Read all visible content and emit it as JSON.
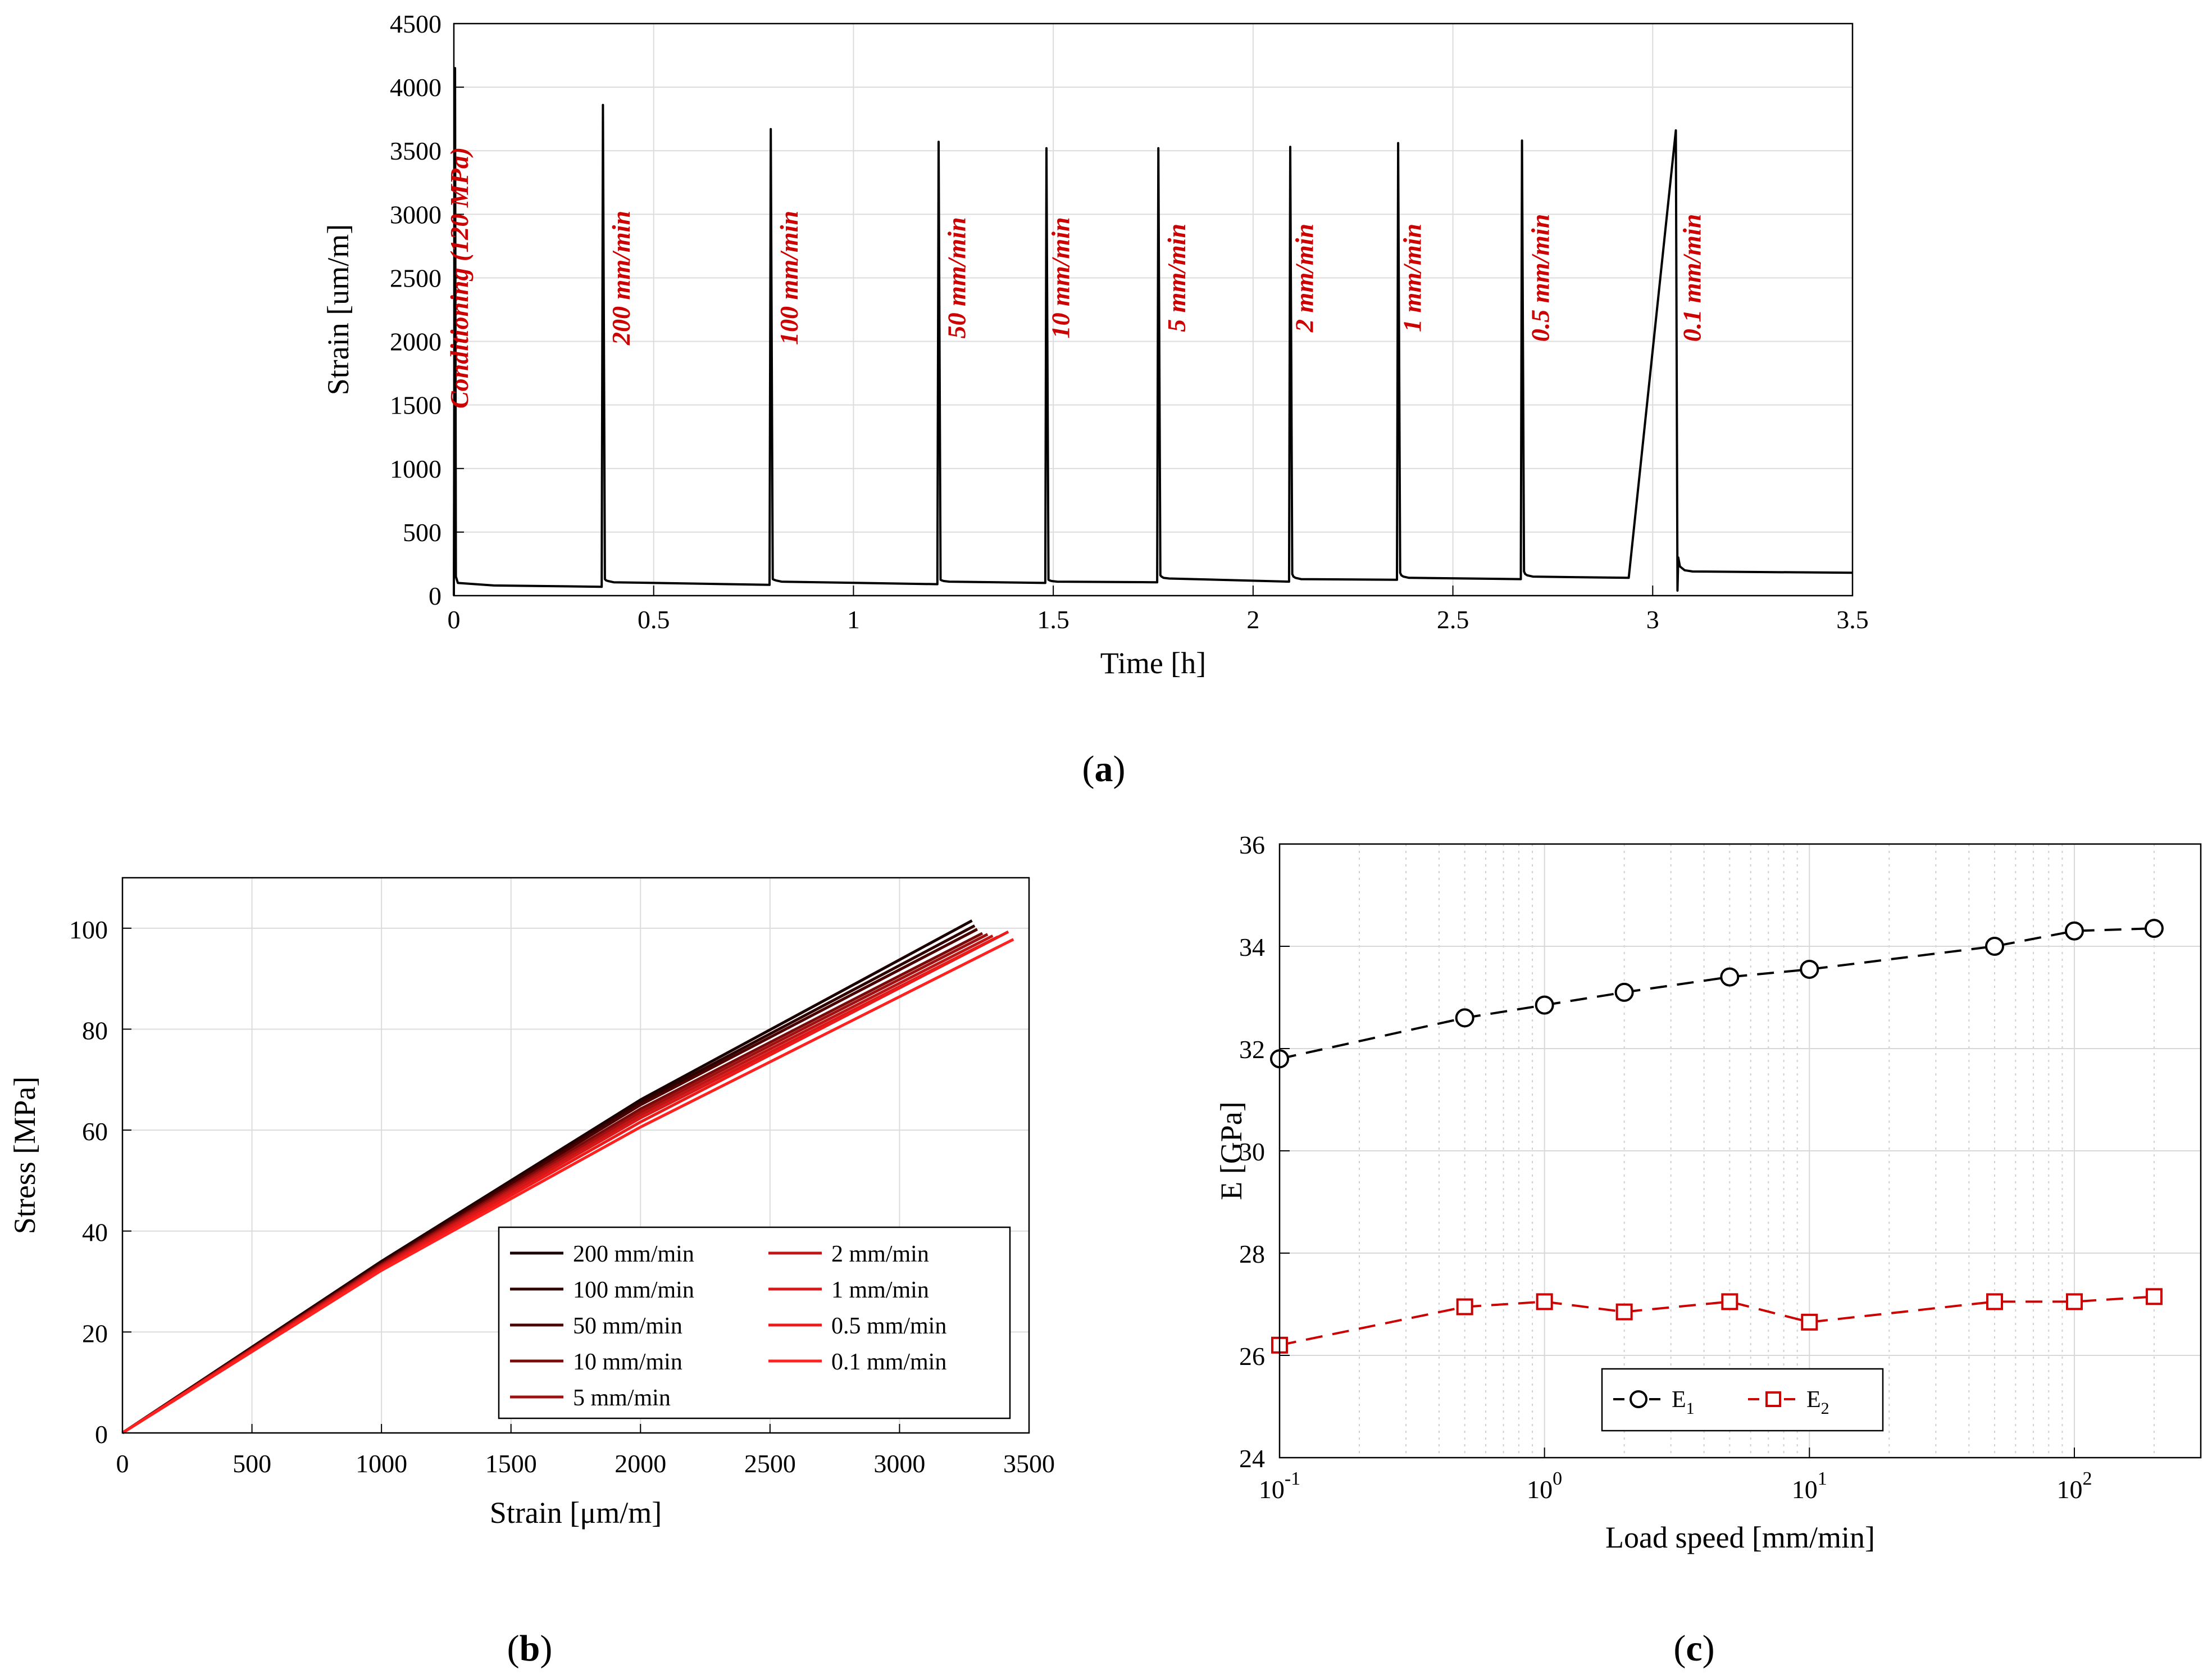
{
  "chart_data": [
    {
      "panel": "(a)",
      "panel_prefix": "(",
      "panel_letter": "a",
      "panel_suffix": ")",
      "type": "line",
      "xlabel": "Time [h]",
      "ylabel": "Strain [um/m]",
      "xlim": [
        0,
        3.5
      ],
      "ylim": [
        0,
        4500
      ],
      "xticks": [
        0,
        0.5,
        1,
        1.5,
        2,
        2.5,
        3,
        3.5
      ],
      "xtick_labels": [
        "0",
        "0.5",
        "1",
        "1.5",
        "2",
        "2.5",
        "3",
        "3.5"
      ],
      "yticks": [
        0,
        500,
        1000,
        1500,
        2000,
        2500,
        3000,
        3500,
        4000,
        4500
      ],
      "ytick_labels": [
        "0",
        "500",
        "1000",
        "1500",
        "2000",
        "2500",
        "3000",
        "3500",
        "4000",
        "4500"
      ],
      "grid": true,
      "line_color": "#000000",
      "annotation_color": "#cc0000",
      "series": [
        {
          "name": "Strain",
          "x": [
            0.0,
            0.003,
            0.005,
            0.01,
            0.1,
            0.37,
            0.373,
            0.378,
            0.381,
            0.386,
            0.4,
            0.79,
            0.793,
            0.798,
            0.801,
            0.806,
            0.82,
            1.21,
            1.213,
            1.218,
            1.221,
            1.226,
            1.24,
            1.48,
            1.483,
            1.488,
            1.491,
            1.496,
            1.51,
            1.76,
            1.763,
            1.768,
            1.771,
            1.776,
            1.79,
            2.09,
            2.093,
            2.098,
            2.101,
            2.106,
            2.12,
            2.36,
            2.363,
            2.368,
            2.371,
            2.376,
            2.39,
            2.67,
            2.673,
            2.678,
            2.681,
            2.686,
            2.7,
            2.94,
            3.058,
            3.062,
            3.064,
            3.068,
            3.08,
            3.1,
            3.5
          ],
          "y": [
            0,
            4150,
            150,
            100,
            80,
            70,
            3860,
            130,
            120,
            115,
            105,
            85,
            3670,
            130,
            125,
            120,
            110,
            90,
            3570,
            125,
            120,
            115,
            110,
            100,
            3520,
            125,
            120,
            115,
            110,
            105,
            3520,
            160,
            150,
            140,
            135,
            110,
            3530,
            170,
            150,
            140,
            130,
            125,
            3560,
            180,
            160,
            150,
            140,
            130,
            3580,
            190,
            170,
            160,
            150,
            140,
            3660,
            40,
            300,
            230,
            200,
            190,
            180
          ]
        }
      ],
      "annotations": [
        {
          "text": "Conditioning (120 MPa)",
          "x": 0.035
        },
        {
          "text": "200 mm/min",
          "x": 0.44
        },
        {
          "text": "100 mm/min",
          "x": 0.86
        },
        {
          "text": "50 mm/min",
          "x": 1.28
        },
        {
          "text": "10 mm/min",
          "x": 1.54
        },
        {
          "text": "5 mm/min",
          "x": 1.83
        },
        {
          "text": "2 mm/min",
          "x": 2.15
        },
        {
          "text": "1 mm/min",
          "x": 2.42
        },
        {
          "text": "0.5 mm/min",
          "x": 2.74
        },
        {
          "text": "0.1 mm/min",
          "x": 3.12
        }
      ],
      "annotation_y": 2500
    },
    {
      "panel": "(b)",
      "panel_prefix": "(",
      "panel_letter": "b",
      "panel_suffix": ")",
      "type": "line",
      "xlabel": "Strain [μm/m]",
      "ylabel": "Stress [MPa]",
      "xlim": [
        0,
        3500
      ],
      "ylim": [
        0,
        110
      ],
      "xticks": [
        0,
        500,
        1000,
        1500,
        2000,
        2500,
        3000,
        3500
      ],
      "xtick_labels": [
        "0",
        "500",
        "1000",
        "1500",
        "2000",
        "2500",
        "3000",
        "3500"
      ],
      "yticks": [
        0,
        20,
        40,
        60,
        80,
        100
      ],
      "ytick_labels": [
        "0",
        "20",
        "40",
        "60",
        "80",
        "100"
      ],
      "grid": true,
      "legend_position": "lower-right",
      "series": [
        {
          "name": "200 mm/min",
          "color": "#1a0000",
          "x": [
            0,
            1000,
            2000,
            3280
          ],
          "y": [
            0,
            34,
            66,
            101.5
          ]
        },
        {
          "name": "100 mm/min",
          "color": "#2e0000",
          "x": [
            0,
            1000,
            2000,
            3290
          ],
          "y": [
            0,
            33.8,
            65.5,
            100.5
          ]
        },
        {
          "name": "50 mm/min",
          "color": "#4a0000",
          "x": [
            0,
            1000,
            2000,
            3300
          ],
          "y": [
            0,
            33.6,
            65,
            99.8
          ]
        },
        {
          "name": "10 mm/min",
          "color": "#7a0a0a",
          "x": [
            0,
            1000,
            2000,
            3320
          ],
          "y": [
            0,
            33.4,
            64.2,
            99
          ]
        },
        {
          "name": "5 mm/min",
          "color": "#a01010",
          "x": [
            0,
            1000,
            2000,
            3340
          ],
          "y": [
            0,
            33.2,
            63.6,
            98.8
          ]
        },
        {
          "name": "2 mm/min",
          "color": "#c01515",
          "x": [
            0,
            1000,
            2000,
            3360
          ],
          "y": [
            0,
            33,
            63,
            98.5
          ]
        },
        {
          "name": "1 mm/min",
          "color": "#d81818",
          "x": [
            0,
            1000,
            2000,
            3380
          ],
          "y": [
            0,
            32.8,
            62.4,
            98.3
          ]
        },
        {
          "name": "0.5 mm/min",
          "color": "#ee1a1a",
          "x": [
            0,
            1000,
            2000,
            3420
          ],
          "y": [
            0,
            32.5,
            61.6,
            99.3
          ]
        },
        {
          "name": "0.1 mm/min",
          "color": "#ff2020",
          "x": [
            0,
            1000,
            2000,
            3440
          ],
          "y": [
            0,
            32.2,
            60.6,
            97.8
          ]
        }
      ],
      "legend_columns": [
        [
          "200 mm/min",
          "100 mm/min",
          "50 mm/min",
          "10 mm/min",
          "5 mm/min"
        ],
        [
          "2 mm/min",
          "1 mm/min",
          "0.5 mm/min",
          "0.1 mm/min"
        ]
      ]
    },
    {
      "panel": "(c)",
      "panel_prefix": "(",
      "panel_letter": "c",
      "panel_suffix": ")",
      "type": "line",
      "xscale": "log",
      "xlabel": "Load speed [mm/min]",
      "ylabel": "E [GPa]",
      "xlim": [
        0.1,
        300
      ],
      "ylim": [
        24,
        36
      ],
      "xticks": [
        0.1,
        1,
        10,
        100
      ],
      "xtick_bases": [
        "10",
        "10",
        "10",
        "10"
      ],
      "xtick_exponents": [
        "-1",
        "0",
        "1",
        "2"
      ],
      "yticks": [
        24,
        26,
        28,
        30,
        32,
        34,
        36
      ],
      "ytick_labels": [
        "24",
        "26",
        "28",
        "30",
        "32",
        "34",
        "36"
      ],
      "grid": true,
      "legend_position": "bottom-left",
      "series": [
        {
          "name": "E",
          "subscript": "1",
          "color": "#000000",
          "marker": "circle",
          "linestyle": "dashed",
          "x": [
            0.1,
            0.5,
            1,
            2,
            5,
            10,
            50,
            100,
            200
          ],
          "y": [
            31.8,
            32.6,
            32.85,
            33.1,
            33.4,
            33.55,
            34.0,
            34.3,
            34.35
          ]
        },
        {
          "name": "E",
          "subscript": "2",
          "color": "#cc0000",
          "marker": "square",
          "linestyle": "dashed",
          "x": [
            0.1,
            0.5,
            1,
            2,
            5,
            10,
            50,
            100,
            200
          ],
          "y": [
            26.2,
            26.95,
            27.05,
            26.85,
            27.05,
            26.65,
            27.05,
            27.05,
            27.15
          ]
        }
      ]
    }
  ]
}
